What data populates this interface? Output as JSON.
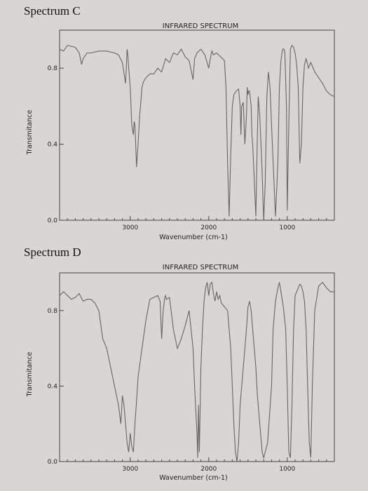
{
  "page": {
    "spectrum_c_label": "Spectrum C",
    "spectrum_d_label": "Spectrum D"
  },
  "chart_data": [
    {
      "type": "line",
      "title": "INFRARED SPECTRUM",
      "xlabel": "Wavenumber (cm-1)",
      "ylabel": "Transmitance",
      "xlim": [
        3900,
        400
      ],
      "ylim": [
        0,
        1.0
      ],
      "xticks": [
        3000,
        2000,
        1000
      ],
      "yticks": [
        "0.0",
        "0.4",
        "0.8"
      ],
      "series": [
        {
          "x": [
            3900,
            3850,
            3800,
            3700,
            3650,
            3620,
            3600,
            3550,
            3500,
            3400,
            3300,
            3200,
            3150,
            3100,
            3060,
            3050,
            3040,
            3030,
            3020,
            3000,
            2980,
            2960,
            2950,
            2940,
            2930,
            2920,
            2900,
            2880,
            2870,
            2850,
            2830,
            2800,
            2750,
            2700,
            2650,
            2600,
            2550,
            2500,
            2450,
            2400,
            2350,
            2300,
            2250,
            2200,
            2180,
            2150,
            2100,
            2050,
            2000,
            1980,
            1960,
            1950,
            1940,
            1900,
            1850,
            1800,
            1780,
            1760,
            1740,
            1720,
            1700,
            1680,
            1650,
            1620,
            1600,
            1590,
            1580,
            1560,
            1540,
            1520,
            1510,
            1500,
            1490,
            1480,
            1460,
            1450,
            1440,
            1400,
            1380,
            1370,
            1350,
            1320,
            1300,
            1280,
            1260,
            1240,
            1220,
            1200,
            1150,
            1120,
            1100,
            1080,
            1060,
            1040,
            1030,
            1010,
            1000,
            980,
            960,
            940,
            920,
            900,
            880,
            860,
            840,
            820,
            800,
            780,
            760,
            740,
            730,
            700,
            650,
            600,
            550,
            500,
            450,
            400
          ],
          "y": [
            0.9,
            0.89,
            0.92,
            0.91,
            0.88,
            0.82,
            0.85,
            0.88,
            0.88,
            0.89,
            0.89,
            0.88,
            0.87,
            0.83,
            0.72,
            0.8,
            0.9,
            0.87,
            0.8,
            0.7,
            0.5,
            0.45,
            0.52,
            0.5,
            0.4,
            0.28,
            0.4,
            0.55,
            0.6,
            0.7,
            0.73,
            0.75,
            0.77,
            0.77,
            0.8,
            0.78,
            0.85,
            0.83,
            0.88,
            0.87,
            0.9,
            0.86,
            0.84,
            0.74,
            0.85,
            0.88,
            0.9,
            0.87,
            0.8,
            0.85,
            0.89,
            0.88,
            0.87,
            0.88,
            0.86,
            0.84,
            0.7,
            0.3,
            0.02,
            0.35,
            0.6,
            0.66,
            0.68,
            0.69,
            0.6,
            0.45,
            0.6,
            0.62,
            0.4,
            0.55,
            0.7,
            0.66,
            0.68,
            0.68,
            0.6,
            0.45,
            0.4,
            0.02,
            0.45,
            0.65,
            0.55,
            0.25,
            0.0,
            0.2,
            0.65,
            0.78,
            0.7,
            0.5,
            0.02,
            0.3,
            0.7,
            0.84,
            0.9,
            0.9,
            0.88,
            0.6,
            0.05,
            0.5,
            0.9,
            0.92,
            0.91,
            0.88,
            0.82,
            0.7,
            0.3,
            0.4,
            0.7,
            0.82,
            0.85,
            0.82,
            0.8,
            0.83,
            0.78,
            0.75,
            0.72,
            0.68,
            0.66,
            0.65
          ]
        }
      ]
    },
    {
      "type": "line",
      "title": "INFRARED SPECTRUM",
      "xlabel": "Wavenumber (cm-1)",
      "ylabel": "Transmitance",
      "xlim": [
        3900,
        400
      ],
      "ylim": [
        0,
        1.0
      ],
      "xticks": [
        3000,
        2000,
        1000
      ],
      "yticks": [
        "0.0",
        "0.4",
        "0.8"
      ],
      "series": [
        {
          "x": [
            3900,
            3850,
            3800,
            3750,
            3700,
            3650,
            3600,
            3550,
            3500,
            3450,
            3400,
            3350,
            3300,
            3250,
            3200,
            3150,
            3120,
            3100,
            3080,
            3060,
            3040,
            3020,
            3000,
            2980,
            2960,
            2940,
            2920,
            2900,
            2850,
            2800,
            2750,
            2700,
            2650,
            2620,
            2600,
            2580,
            2560,
            2550,
            2540,
            2500,
            2450,
            2400,
            2350,
            2300,
            2250,
            2200,
            2180,
            2150,
            2140,
            2130,
            2120,
            2100,
            2080,
            2060,
            2040,
            2020,
            2000,
            1980,
            1960,
            1940,
            1920,
            1900,
            1880,
            1860,
            1840,
            1800,
            1760,
            1740,
            1720,
            1700,
            1680,
            1660,
            1640,
            1620,
            1600,
            1560,
            1520,
            1500,
            1480,
            1460,
            1440,
            1400,
            1380,
            1350,
            1320,
            1300,
            1250,
            1200,
            1180,
            1150,
            1120,
            1100,
            1080,
            1050,
            1020,
            1000,
            980,
            960,
            940,
            920,
            900,
            880,
            860,
            840,
            820,
            800,
            780,
            760,
            740,
            720,
            700,
            680,
            650,
            600,
            550,
            500,
            450,
            400
          ],
          "y": [
            0.88,
            0.9,
            0.88,
            0.86,
            0.87,
            0.89,
            0.85,
            0.86,
            0.86,
            0.84,
            0.8,
            0.65,
            0.6,
            0.5,
            0.4,
            0.3,
            0.2,
            0.35,
            0.3,
            0.2,
            0.1,
            0.05,
            0.15,
            0.08,
            0.05,
            0.2,
            0.32,
            0.45,
            0.6,
            0.75,
            0.86,
            0.87,
            0.88,
            0.85,
            0.65,
            0.8,
            0.87,
            0.88,
            0.86,
            0.87,
            0.7,
            0.6,
            0.65,
            0.72,
            0.8,
            0.6,
            0.4,
            0.15,
            0.02,
            0.3,
            0.05,
            0.5,
            0.7,
            0.85,
            0.92,
            0.95,
            0.88,
            0.94,
            0.95,
            0.89,
            0.85,
            0.9,
            0.86,
            0.88,
            0.84,
            0.82,
            0.8,
            0.7,
            0.6,
            0.4,
            0.2,
            0.05,
            0.0,
            0.1,
            0.3,
            0.5,
            0.7,
            0.82,
            0.85,
            0.8,
            0.7,
            0.5,
            0.35,
            0.2,
            0.05,
            0.02,
            0.1,
            0.4,
            0.7,
            0.85,
            0.92,
            0.95,
            0.9,
            0.82,
            0.7,
            0.4,
            0.05,
            0.02,
            0.3,
            0.7,
            0.88,
            0.9,
            0.92,
            0.94,
            0.93,
            0.9,
            0.85,
            0.7,
            0.4,
            0.1,
            0.02,
            0.4,
            0.8,
            0.93,
            0.95,
            0.92,
            0.9,
            0.9
          ]
        }
      ]
    }
  ]
}
